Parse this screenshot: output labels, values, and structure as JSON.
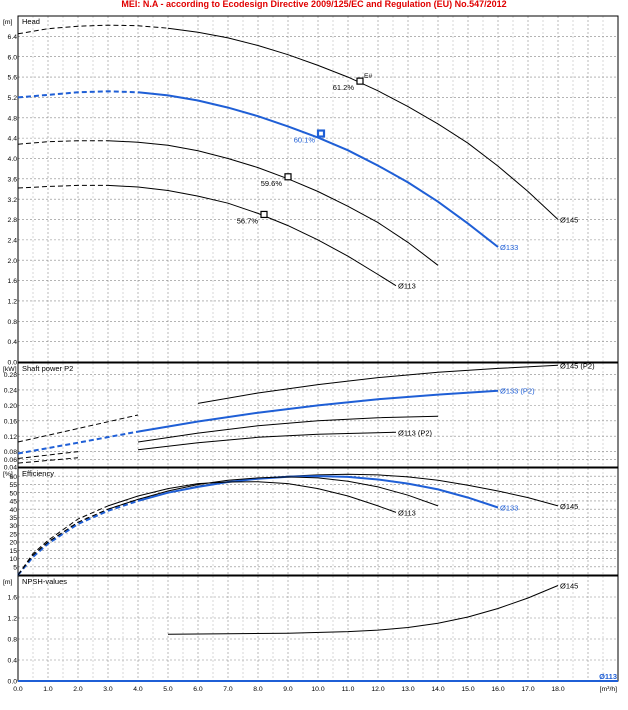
{
  "banner": "MEI: N.A - according to Ecodesign Directive 2009/125/EC and Regulation (EU) No.547/2012",
  "colors": {
    "selected": "#1f5fd6",
    "curve": "#000000",
    "banner": "#e00000",
    "grid": "#888888"
  },
  "chart_data": [
    {
      "type": "line",
      "title": "Head",
      "yunit": "[m]",
      "xlim": [
        0,
        20
      ],
      "ylim": [
        0,
        6.8
      ],
      "yticks": [
        "0.0",
        "0.4",
        "0.8",
        "1.2",
        "1.6",
        "2.0",
        "2.4",
        "2.8",
        "3.2",
        "3.6",
        "4.0",
        "4.4",
        "4.8",
        "5.2",
        "5.6",
        "6.0",
        "6.4"
      ],
      "series": [
        {
          "name": "Ø145",
          "selected": false,
          "dashed_until": 5.0,
          "x": [
            0,
            1,
            2,
            3,
            4,
            5,
            6,
            7,
            8,
            9,
            10,
            11,
            12,
            13,
            14,
            15,
            16,
            17,
            18
          ],
          "y": [
            6.45,
            6.55,
            6.6,
            6.62,
            6.61,
            6.56,
            6.48,
            6.37,
            6.22,
            6.04,
            5.83,
            5.6,
            5.33,
            5.02,
            4.68,
            4.3,
            3.85,
            3.35,
            2.8
          ]
        },
        {
          "name": "Ø133",
          "selected": true,
          "dashed_until": 4.0,
          "x": [
            0,
            1,
            2,
            3,
            4,
            5,
            6,
            7,
            8,
            9,
            10,
            11,
            12,
            13,
            14,
            15,
            16
          ],
          "y": [
            5.2,
            5.25,
            5.3,
            5.32,
            5.3,
            5.24,
            5.14,
            5.0,
            4.83,
            4.63,
            4.41,
            4.16,
            3.86,
            3.53,
            3.15,
            2.72,
            2.26
          ]
        },
        {
          "name": "",
          "selected": false,
          "dashed_until": 3.0,
          "x": [
            0,
            1,
            2,
            3,
            4,
            5,
            6,
            7,
            8,
            9,
            10,
            11,
            12,
            13,
            14
          ],
          "y": [
            4.28,
            4.33,
            4.35,
            4.35,
            4.32,
            4.26,
            4.15,
            4.0,
            3.82,
            3.6,
            3.35,
            3.06,
            2.74,
            2.35,
            1.9
          ]
        },
        {
          "name": "Ø113",
          "selected": false,
          "dashed_until": 3.0,
          "x": [
            0,
            1,
            2,
            3,
            4,
            5,
            6,
            7,
            8,
            9,
            10,
            11,
            12,
            12.6
          ],
          "y": [
            3.42,
            3.45,
            3.47,
            3.47,
            3.44,
            3.37,
            3.26,
            3.12,
            2.92,
            2.68,
            2.4,
            2.08,
            1.72,
            1.5
          ]
        }
      ],
      "bep_points": [
        {
          "x": 11.4,
          "y": 5.52,
          "label": "61.2%",
          "selected": false
        },
        {
          "x": 10.1,
          "y": 4.49,
          "label": "60.1%",
          "selected": true
        },
        {
          "x": 9.0,
          "y": 3.64,
          "label": "59.6%",
          "selected": false
        },
        {
          "x": 8.2,
          "y": 2.9,
          "label": "56.7%",
          "selected": false
        }
      ],
      "annotation": "E#"
    },
    {
      "type": "line",
      "title": "Shaft power P2",
      "yunit": "[kW]",
      "xlim": [
        0,
        20
      ],
      "ylim": [
        0.04,
        0.31
      ],
      "yticks": [
        "0.04",
        "0.06",
        "0.08",
        "0.12",
        "0.16",
        "0.20",
        "0.24",
        "0.28"
      ],
      "series": [
        {
          "name": "Ø145 (P2)",
          "selected": false,
          "dashed_until": 5.0,
          "x": [
            0,
            2,
            4,
            6,
            8,
            10,
            12,
            14,
            16,
            18
          ],
          "y": [
            0.105,
            0.14,
            0.175,
            0.205,
            0.232,
            0.254,
            0.272,
            0.286,
            0.296,
            0.304
          ]
        },
        {
          "name": "Ø133 (P2)",
          "selected": true,
          "dashed_until": 4.0,
          "x": [
            0,
            2,
            4,
            6,
            8,
            10,
            12,
            14,
            16
          ],
          "y": [
            0.075,
            0.103,
            0.132,
            0.158,
            0.181,
            0.2,
            0.216,
            0.228,
            0.238
          ]
        },
        {
          "name": "",
          "selected": false,
          "dashed_until": 3.0,
          "x": [
            0,
            2,
            4,
            6,
            8,
            10,
            12,
            14
          ],
          "y": [
            0.062,
            0.08,
            0.105,
            0.128,
            0.147,
            0.16,
            0.168,
            0.172
          ]
        },
        {
          "name": "Ø113 (P2)",
          "selected": false,
          "dashed_until": 3.0,
          "x": [
            0,
            2,
            4,
            6,
            8,
            10,
            12.6
          ],
          "y": [
            0.05,
            0.064,
            0.085,
            0.103,
            0.117,
            0.125,
            0.13
          ]
        }
      ]
    },
    {
      "type": "line",
      "title": "Efficiency",
      "yunit": "[%]",
      "xlim": [
        0,
        20
      ],
      "ylim": [
        0,
        65
      ],
      "yticks": [
        "5",
        "10",
        "15",
        "20",
        "25",
        "30",
        "35",
        "40",
        "45",
        "50",
        "55",
        "60"
      ],
      "series": [
        {
          "name": "Ø145",
          "selected": false,
          "dashed_until": 5.0,
          "x": [
            0,
            0.5,
            1,
            2,
            3,
            4,
            5,
            6,
            7,
            8,
            9,
            10,
            11,
            12,
            13,
            14,
            15,
            16,
            17,
            18
          ],
          "y": [
            0,
            12,
            20,
            32,
            40,
            46,
            50,
            54,
            56.5,
            58.5,
            60,
            60.8,
            61.2,
            60.8,
            59.6,
            57.5,
            54.5,
            51,
            47,
            42
          ]
        },
        {
          "name": "Ø133",
          "selected": true,
          "dashed_until": 4.0,
          "x": [
            0,
            0.5,
            1,
            2,
            3,
            4,
            5,
            6,
            7,
            8,
            9,
            10,
            11,
            12,
            13,
            14,
            15,
            16
          ],
          "y": [
            0,
            11,
            19,
            31,
            39,
            45,
            50,
            53.5,
            56.5,
            58.5,
            59.7,
            60.1,
            59.6,
            58,
            55.5,
            52,
            47,
            41
          ]
        },
        {
          "name": "",
          "selected": false,
          "dashed_until": 3.0,
          "x": [
            0,
            0.5,
            1,
            2,
            3,
            4,
            5,
            6,
            7,
            8,
            9,
            10,
            11,
            12,
            13,
            14
          ],
          "y": [
            0,
            12,
            20,
            32,
            40,
            46,
            51,
            55,
            57.5,
            59,
            59.6,
            59,
            57,
            53.5,
            48.5,
            42
          ]
        },
        {
          "name": "Ø113",
          "selected": false,
          "dashed_until": 3.0,
          "x": [
            0,
            0.5,
            1,
            2,
            3,
            4,
            5,
            6,
            7,
            8,
            9,
            10,
            11,
            12,
            12.6
          ],
          "y": [
            0,
            13,
            21,
            34,
            42,
            48,
            52.5,
            55.5,
            56.5,
            56.7,
            55.5,
            52.5,
            48,
            42,
            38
          ]
        }
      ]
    },
    {
      "type": "line",
      "title": "NPSH-values",
      "yunit": "[m]",
      "xunit": "[m³/h]",
      "xlim": [
        0,
        20
      ],
      "ylim": [
        0,
        2.0
      ],
      "xticks": [
        "0.0",
        "1.0",
        "2.0",
        "3.0",
        "4.0",
        "5.0",
        "6.0",
        "7.0",
        "8.0",
        "9.0",
        "10.0",
        "11.0",
        "12.0",
        "13.0",
        "14.0",
        "15.0",
        "16.0",
        "17.0",
        "18.0"
      ],
      "yticks": [
        "0.0",
        "0.4",
        "0.8",
        "1.2",
        "1.6"
      ],
      "series": [
        {
          "name": "Ø145",
          "selected": false,
          "dashed_until": 0,
          "x": [
            5,
            7,
            9,
            11,
            12,
            13,
            14,
            15,
            16,
            17,
            18
          ],
          "y": [
            0.89,
            0.9,
            0.91,
            0.94,
            0.97,
            1.02,
            1.1,
            1.22,
            1.38,
            1.58,
            1.82
          ]
        },
        {
          "name": "Ø113",
          "selected": true,
          "dashed_until": 0,
          "x": [
            0,
            20
          ],
          "y": [
            0.0,
            0.0
          ]
        }
      ]
    }
  ]
}
